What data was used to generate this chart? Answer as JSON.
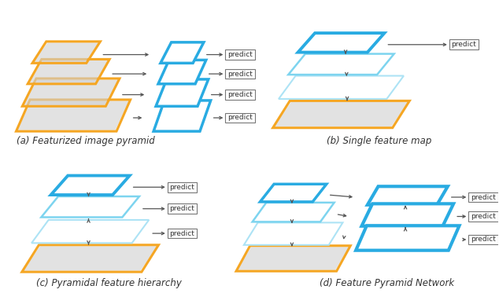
{
  "fig_width": 6.34,
  "fig_height": 3.73,
  "dpi": 100,
  "bg_color": "#ffffff",
  "orange": "#F5A623",
  "blue": "#29ABE2",
  "light_blue": "#ADE3F5",
  "mid_blue": "#7DD4EF",
  "gray_fill": "#d0d0d0",
  "dgray": "#555555",
  "predict_edge": "#777777",
  "text_color": "#333333",
  "label_a": "(a) Featurized image pyramid",
  "label_b": "(b) Single feature map",
  "label_c": "(c) Pyramidal feature hierarchy",
  "label_d": "(d) Feature Pyramid Network",
  "predict_text": "predict",
  "label_fs": 8.5,
  "predict_fs": 6.5
}
